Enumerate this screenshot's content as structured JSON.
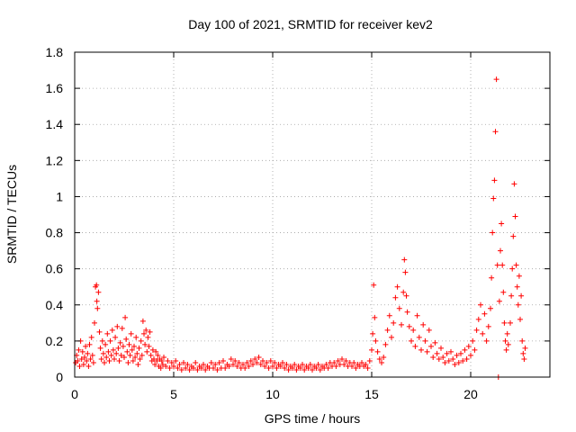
{
  "chart_data": {
    "type": "scatter",
    "title": "Day 100 of 2021, SRMTID for receiver kev2",
    "xlabel": "GPS time / hours",
    "ylabel": "SRMTID / TECUs",
    "xlim": [
      0,
      24
    ],
    "ylim": [
      0,
      1.8
    ],
    "xticks": [
      0,
      5,
      10,
      15,
      20
    ],
    "xtick_labels": [
      "0",
      "5",
      "10",
      "15",
      "20"
    ],
    "yticks": [
      0,
      0.2,
      0.4,
      0.6,
      0.8,
      1,
      1.2,
      1.4,
      1.6,
      1.8
    ],
    "ytick_labels": [
      "0",
      "0.2",
      "0.4",
      "0.6",
      "0.8",
      "1",
      "1.2",
      "1.4",
      "1.6",
      "1.8"
    ],
    "grid": true,
    "marker": "+",
    "color": "#ff0000",
    "series": [
      {
        "name": "SRMTID",
        "points": [
          [
            0.05,
            0.08
          ],
          [
            0.1,
            0.12
          ],
          [
            0.15,
            0.09
          ],
          [
            0.2,
            0.15
          ],
          [
            0.25,
            0.06
          ],
          [
            0.3,
            0.2
          ],
          [
            0.35,
            0.1
          ],
          [
            0.4,
            0.14
          ],
          [
            0.45,
            0.07
          ],
          [
            0.5,
            0.11
          ],
          [
            0.55,
            0.17
          ],
          [
            0.6,
            0.09
          ],
          [
            0.65,
            0.13
          ],
          [
            0.7,
            0.06
          ],
          [
            0.75,
            0.18
          ],
          [
            0.8,
            0.1
          ],
          [
            0.85,
            0.22
          ],
          [
            0.9,
            0.12
          ],
          [
            0.95,
            0.08
          ],
          [
            1.0,
            0.3
          ],
          [
            1.05,
            0.5
          ],
          [
            1.1,
            0.51
          ],
          [
            1.12,
            0.42
          ],
          [
            1.15,
            0.38
          ],
          [
            1.2,
            0.47
          ],
          [
            1.25,
            0.25
          ],
          [
            1.3,
            0.16
          ],
          [
            1.35,
            0.1
          ],
          [
            1.4,
            0.2
          ],
          [
            1.45,
            0.13
          ],
          [
            1.5,
            0.08
          ],
          [
            1.55,
            0.18
          ],
          [
            1.6,
            0.11
          ],
          [
            1.65,
            0.24
          ],
          [
            1.7,
            0.14
          ],
          [
            1.75,
            0.09
          ],
          [
            1.8,
            0.2
          ],
          [
            1.85,
            0.12
          ],
          [
            1.9,
            0.26
          ],
          [
            1.95,
            0.15
          ],
          [
            2.0,
            0.1
          ],
          [
            2.05,
            0.22
          ],
          [
            2.1,
            0.13
          ],
          [
            2.15,
            0.28
          ],
          [
            2.2,
            0.16
          ],
          [
            2.25,
            0.09
          ],
          [
            2.3,
            0.19
          ],
          [
            2.35,
            0.12
          ],
          [
            2.4,
            0.27
          ],
          [
            2.45,
            0.17
          ],
          [
            2.5,
            0.11
          ],
          [
            2.55,
            0.33
          ],
          [
            2.6,
            0.21
          ],
          [
            2.65,
            0.14
          ],
          [
            2.7,
            0.08
          ],
          [
            2.75,
            0.18
          ],
          [
            2.8,
            0.12
          ],
          [
            2.85,
            0.24
          ],
          [
            2.9,
            0.15
          ],
          [
            2.95,
            0.09
          ],
          [
            3.0,
            0.17
          ],
          [
            3.05,
            0.11
          ],
          [
            3.1,
            0.22
          ],
          [
            3.15,
            0.13
          ],
          [
            3.2,
            0.07
          ],
          [
            3.25,
            0.16
          ],
          [
            3.3,
            0.1
          ],
          [
            3.35,
            0.2
          ],
          [
            3.4,
            0.12
          ],
          [
            3.45,
            0.31
          ],
          [
            3.5,
            0.24
          ],
          [
            3.55,
            0.18
          ],
          [
            3.6,
            0.26
          ],
          [
            3.65,
            0.14
          ],
          [
            3.7,
            0.22
          ],
          [
            3.75,
            0.17
          ],
          [
            3.8,
            0.25
          ],
          [
            3.85,
            0.12
          ],
          [
            3.9,
            0.09
          ],
          [
            3.95,
            0.15
          ],
          [
            4.0,
            0.1
          ],
          [
            4.05,
            0.07
          ],
          [
            4.1,
            0.14
          ],
          [
            4.15,
            0.09
          ],
          [
            4.2,
            0.12
          ],
          [
            4.25,
            0.06
          ],
          [
            4.3,
            0.1
          ],
          [
            4.35,
            0.05
          ],
          [
            4.4,
            0.09
          ],
          [
            4.45,
            0.07
          ],
          [
            4.5,
            0.11
          ],
          [
            4.6,
            0.06
          ],
          [
            4.7,
            0.09
          ],
          [
            4.8,
            0.05
          ],
          [
            4.9,
            0.08
          ],
          [
            5.0,
            0.06
          ],
          [
            5.1,
            0.09
          ],
          [
            5.2,
            0.05
          ],
          [
            5.3,
            0.07
          ],
          [
            5.4,
            0.04
          ],
          [
            5.5,
            0.08
          ],
          [
            5.6,
            0.05
          ],
          [
            5.7,
            0.07
          ],
          [
            5.8,
            0.04
          ],
          [
            5.9,
            0.06
          ],
          [
            6.0,
            0.05
          ],
          [
            6.1,
            0.08
          ],
          [
            6.2,
            0.04
          ],
          [
            6.3,
            0.06
          ],
          [
            6.4,
            0.05
          ],
          [
            6.5,
            0.07
          ],
          [
            6.6,
            0.04
          ],
          [
            6.7,
            0.06
          ],
          [
            6.8,
            0.05
          ],
          [
            6.9,
            0.08
          ],
          [
            7.0,
            0.05
          ],
          [
            7.1,
            0.07
          ],
          [
            7.2,
            0.04
          ],
          [
            7.3,
            0.08
          ],
          [
            7.4,
            0.05
          ],
          [
            7.5,
            0.09
          ],
          [
            7.6,
            0.05
          ],
          [
            7.7,
            0.07
          ],
          [
            7.8,
            0.06
          ],
          [
            7.9,
            0.1
          ],
          [
            8.0,
            0.07
          ],
          [
            8.1,
            0.09
          ],
          [
            8.2,
            0.06
          ],
          [
            8.3,
            0.08
          ],
          [
            8.4,
            0.05
          ],
          [
            8.5,
            0.07
          ],
          [
            8.6,
            0.05
          ],
          [
            8.7,
            0.08
          ],
          [
            8.8,
            0.06
          ],
          [
            8.9,
            0.09
          ],
          [
            9.0,
            0.07
          ],
          [
            9.1,
            0.1
          ],
          [
            9.2,
            0.08
          ],
          [
            9.3,
            0.11
          ],
          [
            9.4,
            0.07
          ],
          [
            9.5,
            0.09
          ],
          [
            9.6,
            0.06
          ],
          [
            9.7,
            0.08
          ],
          [
            9.8,
            0.05
          ],
          [
            9.9,
            0.09
          ],
          [
            10.0,
            0.06
          ],
          [
            10.1,
            0.08
          ],
          [
            10.2,
            0.05
          ],
          [
            10.3,
            0.07
          ],
          [
            10.4,
            0.06
          ],
          [
            10.5,
            0.08
          ],
          [
            10.6,
            0.05
          ],
          [
            10.7,
            0.07
          ],
          [
            10.8,
            0.04
          ],
          [
            10.9,
            0.06
          ],
          [
            11.0,
            0.05
          ],
          [
            11.1,
            0.07
          ],
          [
            11.2,
            0.04
          ],
          [
            11.3,
            0.06
          ],
          [
            11.4,
            0.05
          ],
          [
            11.5,
            0.07
          ],
          [
            11.6,
            0.04
          ],
          [
            11.7,
            0.06
          ],
          [
            11.8,
            0.05
          ],
          [
            11.9,
            0.07
          ],
          [
            12.0,
            0.04
          ],
          [
            12.1,
            0.06
          ],
          [
            12.2,
            0.05
          ],
          [
            12.3,
            0.07
          ],
          [
            12.4,
            0.04
          ],
          [
            12.5,
            0.06
          ],
          [
            12.6,
            0.05
          ],
          [
            12.7,
            0.07
          ],
          [
            12.8,
            0.05
          ],
          [
            12.9,
            0.08
          ],
          [
            13.0,
            0.06
          ],
          [
            13.1,
            0.08
          ],
          [
            13.2,
            0.06
          ],
          [
            13.3,
            0.09
          ],
          [
            13.4,
            0.07
          ],
          [
            13.5,
            0.1
          ],
          [
            13.6,
            0.07
          ],
          [
            13.7,
            0.09
          ],
          [
            13.8,
            0.06
          ],
          [
            13.9,
            0.08
          ],
          [
            14.0,
            0.06
          ],
          [
            14.1,
            0.08
          ],
          [
            14.2,
            0.05
          ],
          [
            14.3,
            0.07
          ],
          [
            14.4,
            0.06
          ],
          [
            14.5,
            0.08
          ],
          [
            14.6,
            0.06
          ],
          [
            14.7,
            0.07
          ],
          [
            14.8,
            0.05
          ],
          [
            14.9,
            0.09
          ],
          [
            15.0,
            0.15
          ],
          [
            15.05,
            0.24
          ],
          [
            15.1,
            0.51
          ],
          [
            15.15,
            0.33
          ],
          [
            15.2,
            0.2
          ],
          [
            15.3,
            0.14
          ],
          [
            15.4,
            0.1
          ],
          [
            15.5,
            0.08
          ],
          [
            15.6,
            0.11
          ],
          [
            15.7,
            0.18
          ],
          [
            15.8,
            0.26
          ],
          [
            15.9,
            0.34
          ],
          [
            16.0,
            0.22
          ],
          [
            16.1,
            0.3
          ],
          [
            16.2,
            0.44
          ],
          [
            16.3,
            0.5
          ],
          [
            16.4,
            0.38
          ],
          [
            16.5,
            0.29
          ],
          [
            16.6,
            0.47
          ],
          [
            16.65,
            0.65
          ],
          [
            16.7,
            0.58
          ],
          [
            16.75,
            0.45
          ],
          [
            16.8,
            0.36
          ],
          [
            16.9,
            0.28
          ],
          [
            17.0,
            0.2
          ],
          [
            17.1,
            0.26
          ],
          [
            17.2,
            0.17
          ],
          [
            17.3,
            0.34
          ],
          [
            17.4,
            0.22
          ],
          [
            17.5,
            0.15
          ],
          [
            17.6,
            0.29
          ],
          [
            17.7,
            0.2
          ],
          [
            17.8,
            0.14
          ],
          [
            17.9,
            0.26
          ],
          [
            18.0,
            0.17
          ],
          [
            18.1,
            0.11
          ],
          [
            18.2,
            0.19
          ],
          [
            18.3,
            0.13
          ],
          [
            18.4,
            0.1
          ],
          [
            18.5,
            0.16
          ],
          [
            18.6,
            0.11
          ],
          [
            18.7,
            0.08
          ],
          [
            18.8,
            0.13
          ],
          [
            18.9,
            0.09
          ],
          [
            19.0,
            0.14
          ],
          [
            19.1,
            0.1
          ],
          [
            19.2,
            0.07
          ],
          [
            19.3,
            0.12
          ],
          [
            19.4,
            0.08
          ],
          [
            19.5,
            0.13
          ],
          [
            19.6,
            0.09
          ],
          [
            19.7,
            0.15
          ],
          [
            19.8,
            0.1
          ],
          [
            19.9,
            0.17
          ],
          [
            20.0,
            0.12
          ],
          [
            20.1,
            0.2
          ],
          [
            20.2,
            0.15
          ],
          [
            20.3,
            0.26
          ],
          [
            20.4,
            0.32
          ],
          [
            20.5,
            0.4
          ],
          [
            20.6,
            0.24
          ],
          [
            20.7,
            0.35
          ],
          [
            20.8,
            0.2
          ],
          [
            20.9,
            0.28
          ],
          [
            21.0,
            0.38
          ],
          [
            21.05,
            0.55
          ],
          [
            21.1,
            0.8
          ],
          [
            21.15,
            0.99
          ],
          [
            21.2,
            1.09
          ],
          [
            21.25,
            1.36
          ],
          [
            21.3,
            1.65
          ],
          [
            21.35,
            0.62
          ],
          [
            21.4,
            0.0
          ],
          [
            21.45,
            0.42
          ],
          [
            21.5,
            0.7
          ],
          [
            21.55,
            0.85
          ],
          [
            21.6,
            0.62
          ],
          [
            21.65,
            0.47
          ],
          [
            21.7,
            0.3
          ],
          [
            21.75,
            0.2
          ],
          [
            21.8,
            0.15
          ],
          [
            21.85,
            0.24
          ],
          [
            21.9,
            0.18
          ],
          [
            22.0,
            0.3
          ],
          [
            22.05,
            0.45
          ],
          [
            22.1,
            0.6
          ],
          [
            22.15,
            0.78
          ],
          [
            22.2,
            1.07
          ],
          [
            22.25,
            0.89
          ],
          [
            22.3,
            0.62
          ],
          [
            22.35,
            0.5
          ],
          [
            22.4,
            0.4
          ],
          [
            22.45,
            0.56
          ],
          [
            22.5,
            0.32
          ],
          [
            22.55,
            0.45
          ],
          [
            22.6,
            0.2
          ],
          [
            22.65,
            0.13
          ],
          [
            22.7,
            0.1
          ],
          [
            22.75,
            0.16
          ]
        ]
      }
    ]
  }
}
